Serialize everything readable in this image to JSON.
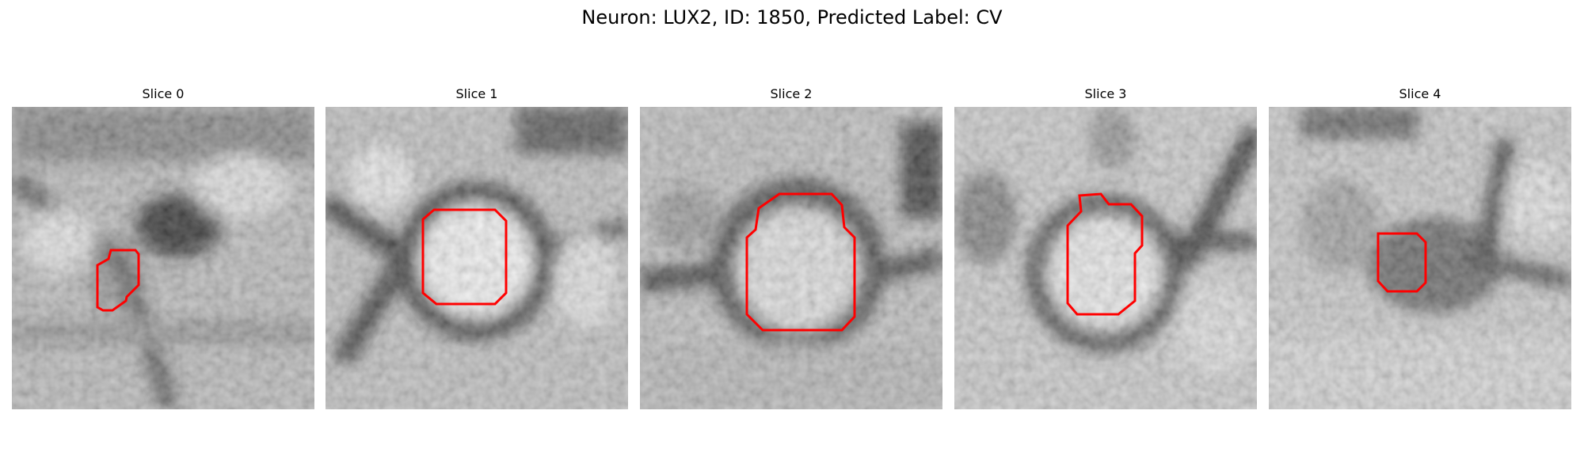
{
  "figure": {
    "title": "Neuron: LUX2, ID: 1850, Predicted Label: CV"
  },
  "slices": [
    {
      "label": "Slice 0"
    },
    {
      "label": "Slice 1"
    },
    {
      "label": "Slice 2"
    },
    {
      "label": "Slice 3"
    },
    {
      "label": "Slice 4"
    }
  ],
  "colors": {
    "contour": "#ff0000",
    "colormap": "gray"
  }
}
